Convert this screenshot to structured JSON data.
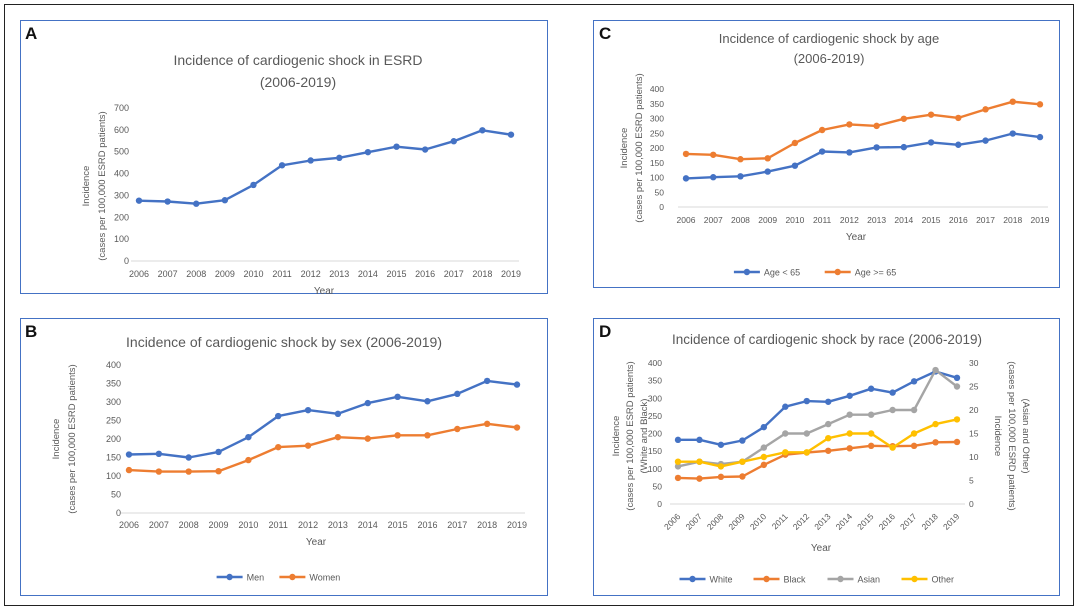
{
  "colors": {
    "series1": "#4472c4",
    "series2": "#ed7d31",
    "asian": "#a5a5a5",
    "other": "#ffc000"
  },
  "chart_data": [
    {
      "panel_label": "A",
      "type": "line",
      "title_line1": "Incidence of cardiogenic shock in ESRD",
      "title_line2": "(2006-2019)",
      "xlabel": "Year",
      "ylabel_line1": "Incidence",
      "ylabel_line2": "(cases per 100,000 ESRD patients)",
      "ylim": [
        0,
        700
      ],
      "yticks": [
        "0",
        "100",
        "200",
        "300",
        "400",
        "500",
        "600",
        "700"
      ],
      "categories": [
        "2006",
        "2007",
        "2008",
        "2009",
        "2010",
        "2011",
        "2012",
        "2013",
        "2014",
        "2015",
        "2016",
        "2017",
        "2018",
        "2019"
      ],
      "series": [
        {
          "color": "#4472c4",
          "values": [
            276,
            272,
            262,
            278,
            348,
            438,
            460,
            472,
            498,
            523,
            510,
            548,
            598,
            578
          ]
        }
      ],
      "grid": false,
      "legend": "none"
    },
    {
      "panel_label": "B",
      "type": "line",
      "title_line1": "Incidence of cardiogenic shock by sex (2006-2019)",
      "xlabel": "Year",
      "ylabel_line1": "Incidence",
      "ylabel_line2": "(cases per 100,000 ESRD patients)",
      "ylim": [
        0,
        400
      ],
      "yticks": [
        "0",
        "50",
        "100",
        "150",
        "200",
        "250",
        "300",
        "350",
        "400"
      ],
      "categories": [
        "2006",
        "2007",
        "2008",
        "2009",
        "2010",
        "2011",
        "2012",
        "2013",
        "2014",
        "2015",
        "2016",
        "2017",
        "2018",
        "2019"
      ],
      "series": [
        {
          "name": "Men",
          "color": "#4472c4",
          "values": [
            158,
            160,
            150,
            165,
            205,
            262,
            278,
            268,
            297,
            314,
            302,
            322,
            357,
            347
          ]
        },
        {
          "name": "Women",
          "color": "#ed7d31",
          "values": [
            116,
            112,
            112,
            113,
            143,
            178,
            182,
            205,
            201,
            210,
            210,
            227,
            241,
            231
          ]
        }
      ],
      "grid": false,
      "legend": "bottom"
    },
    {
      "panel_label": "C",
      "type": "line",
      "title_line1": "Incidence of cardiogenic shock by age",
      "title_line2": "(2006-2019)",
      "xlabel": "Year",
      "ylabel_line1": "Incidence",
      "ylabel_line2": "(cases per 100,000 ESRD patients)",
      "ylim": [
        0,
        400
      ],
      "yticks": [
        "0",
        "50",
        "100",
        "150",
        "200",
        "250",
        "300",
        "350",
        "400"
      ],
      "categories": [
        "2006",
        "2007",
        "2008",
        "2009",
        "2010",
        "2011",
        "2012",
        "2013",
        "2014",
        "2015",
        "2016",
        "2017",
        "2018",
        "2019"
      ],
      "series": [
        {
          "name": "Age < 65",
          "color": "#4472c4",
          "values": [
            97,
            101,
            104,
            120,
            140,
            188,
            185,
            202,
            203,
            219,
            211,
            225,
            249,
            237
          ]
        },
        {
          "name": "Age >= 65",
          "color": "#ed7d31",
          "values": [
            180,
            177,
            162,
            165,
            217,
            261,
            280,
            275,
            299,
            313,
            302,
            331,
            357,
            348
          ]
        }
      ],
      "grid": false,
      "legend": "bottom"
    },
    {
      "panel_label": "D",
      "type": "line",
      "title_line1": "Incidence of cardiogenic shock by race (2006-2019)",
      "xlabel": "Year",
      "ylabel_line1": "Incidence",
      "ylabel_line2": "(cases per 100,000 ESRD patients)",
      "ylabel_line3": "(White and Black)",
      "y2label_line1": "Incidence",
      "y2label_line2": "(cases per 100,000 ESRD patients)",
      "y2label_line3": "(Asian and Other)",
      "ylim": [
        0,
        400
      ],
      "yticks": [
        "0",
        "50",
        "100",
        "150",
        "200",
        "250",
        "300",
        "350",
        "400"
      ],
      "y2lim": [
        0,
        30
      ],
      "y2ticks": [
        "0",
        "5",
        "10",
        "15",
        "20",
        "25",
        "30"
      ],
      "categories": [
        "2006",
        "2007",
        "2008",
        "2009",
        "2010",
        "2011",
        "2012",
        "2013",
        "2014",
        "2015",
        "2016",
        "2017",
        "2018",
        "2019"
      ],
      "series": [
        {
          "name": "White",
          "axis": "left",
          "color": "#4472c4",
          "values": [
            182,
            182,
            168,
            180,
            218,
            276,
            292,
            290,
            307,
            327,
            316,
            348,
            376,
            358
          ]
        },
        {
          "name": "Black",
          "axis": "left",
          "color": "#ed7d31",
          "values": [
            74,
            72,
            77,
            78,
            111,
            140,
            146,
            151,
            158,
            165,
            164,
            165,
            175,
            176
          ]
        },
        {
          "name": "Asian",
          "axis": "right",
          "color": "#a5a5a5",
          "values": [
            8.0,
            9.0,
            8.5,
            9.0,
            12.0,
            15.0,
            15.0,
            17.0,
            19.0,
            19.0,
            20.0,
            20.0,
            28.5,
            25.0
          ]
        },
        {
          "name": "Other",
          "axis": "right",
          "color": "#ffc000",
          "values": [
            9.0,
            9.0,
            8.0,
            9.0,
            10.0,
            11.0,
            11.0,
            14.0,
            15.0,
            15.0,
            12.0,
            15.0,
            17.0,
            18.0
          ]
        }
      ],
      "grid": false,
      "legend": "bottom"
    }
  ]
}
